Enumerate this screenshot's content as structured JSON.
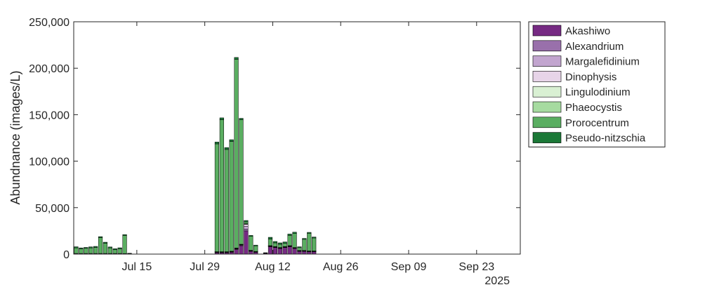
{
  "chart_data": {
    "type": "bar",
    "stacked": true,
    "title": "",
    "xlabel": "",
    "ylabel": "Abundnance (images/L)",
    "year_label": "2025",
    "xlim": [
      "2025-07-02",
      "2025-10-02"
    ],
    "ylim": [
      0,
      250000
    ],
    "x_ticks": [
      {
        "date": "2025-07-15",
        "label": "Jul 15"
      },
      {
        "date": "2025-07-29",
        "label": "Jul 29"
      },
      {
        "date": "2025-08-12",
        "label": "Aug 12"
      },
      {
        "date": "2025-08-26",
        "label": "Aug 26"
      },
      {
        "date": "2025-09-09",
        "label": "Sep 09"
      },
      {
        "date": "2025-09-23",
        "label": "Sep 23"
      }
    ],
    "y_ticks": [
      {
        "value": 0,
        "label": "0"
      },
      {
        "value": 50000,
        "label": "50,000"
      },
      {
        "value": 100000,
        "label": "100,000"
      },
      {
        "value": 150000,
        "label": "150,000"
      },
      {
        "value": 200000,
        "label": "200,000"
      },
      {
        "value": 250000,
        "label": "250,000"
      }
    ],
    "grid": false,
    "legend_position": "right",
    "x": [
      "2025-07-02",
      "2025-07-03",
      "2025-07-04",
      "2025-07-05",
      "2025-07-06",
      "2025-07-07",
      "2025-07-08",
      "2025-07-09",
      "2025-07-10",
      "2025-07-11",
      "2025-07-12",
      "2025-07-13",
      "2025-07-31",
      "2025-08-01",
      "2025-08-02",
      "2025-08-03",
      "2025-08-04",
      "2025-08-05",
      "2025-08-06",
      "2025-08-07",
      "2025-08-08",
      "2025-08-10",
      "2025-08-11",
      "2025-08-12",
      "2025-08-13",
      "2025-08-14",
      "2025-08-15",
      "2025-08-16",
      "2025-08-17",
      "2025-08-18",
      "2025-08-19",
      "2025-08-20"
    ],
    "series": [
      {
        "name": "Akashiwo",
        "color": "#762a83",
        "values": [
          700,
          700,
          700,
          700,
          700,
          700,
          700,
          700,
          700,
          700,
          600,
          700,
          1500,
          1500,
          1500,
          2000,
          5000,
          9000,
          25000,
          3000,
          2000,
          800,
          8000,
          7000,
          6000,
          7000,
          8000,
          6000,
          3000,
          3000,
          2500,
          2500
        ]
      },
      {
        "name": "Alexandrium",
        "color": "#9970ab",
        "values": [
          0,
          0,
          0,
          0,
          0,
          0,
          0,
          0,
          0,
          0,
          0,
          0,
          300,
          300,
          300,
          300,
          500,
          500,
          2000,
          300,
          200,
          0,
          300,
          300,
          300,
          300,
          300,
          300,
          200,
          200,
          200,
          200
        ]
      },
      {
        "name": "Margalefidinium",
        "color": "#c2a5cf",
        "values": [
          0,
          0,
          0,
          0,
          0,
          0,
          0,
          0,
          0,
          0,
          0,
          0,
          300,
          300,
          300,
          300,
          500,
          500,
          3000,
          300,
          200,
          0,
          300,
          300,
          300,
          300,
          300,
          300,
          200,
          200,
          200,
          200
        ]
      },
      {
        "name": "Dinophysis",
        "color": "#e7d4e8",
        "values": [
          0,
          0,
          0,
          0,
          0,
          0,
          0,
          0,
          0,
          0,
          0,
          0,
          200,
          200,
          200,
          200,
          300,
          300,
          2000,
          200,
          200,
          0,
          200,
          200,
          200,
          200,
          200,
          200,
          200,
          200,
          200,
          200
        ]
      },
      {
        "name": "Lingulodinium",
        "color": "#d9f0d3",
        "values": [
          0,
          0,
          0,
          0,
          0,
          0,
          0,
          0,
          0,
          0,
          0,
          0,
          200,
          200,
          200,
          200,
          200,
          200,
          500,
          200,
          200,
          0,
          200,
          200,
          200,
          200,
          200,
          200,
          200,
          200,
          200,
          200
        ]
      },
      {
        "name": "Phaeocystis",
        "color": "#a6dba0",
        "values": [
          0,
          0,
          0,
          0,
          0,
          0,
          0,
          0,
          0,
          0,
          0,
          0,
          100,
          100,
          100,
          100,
          100,
          100,
          200,
          100,
          100,
          0,
          100,
          100,
          100,
          100,
          100,
          100,
          100,
          100,
          100,
          100
        ]
      },
      {
        "name": "Prorocentrum",
        "color": "#5aae61",
        "values": [
          6000,
          5000,
          5500,
          6000,
          6500,
          17000,
          11000,
          6000,
          4000,
          5000,
          19500,
          0,
          116000,
          142000,
          110000,
          118000,
          203000,
          134000,
          2000,
          15000,
          6000,
          300,
          7000,
          4000,
          3500,
          3500,
          11000,
          15000,
          3000,
          12000,
          19000,
          14000
        ]
      },
      {
        "name": "Pseudo-nitzschia",
        "color": "#1b7837",
        "values": [
          1200,
          1000,
          1000,
          1100,
          1100,
          1100,
          1100,
          1000,
          1100,
          1100,
          900,
          200,
          2000,
          2000,
          2000,
          2000,
          2000,
          1500,
          1500,
          1000,
          800,
          400,
          2000,
          1500,
          1500,
          1500,
          1500,
          1500,
          1000,
          1000,
          1000,
          1000
        ]
      }
    ]
  }
}
